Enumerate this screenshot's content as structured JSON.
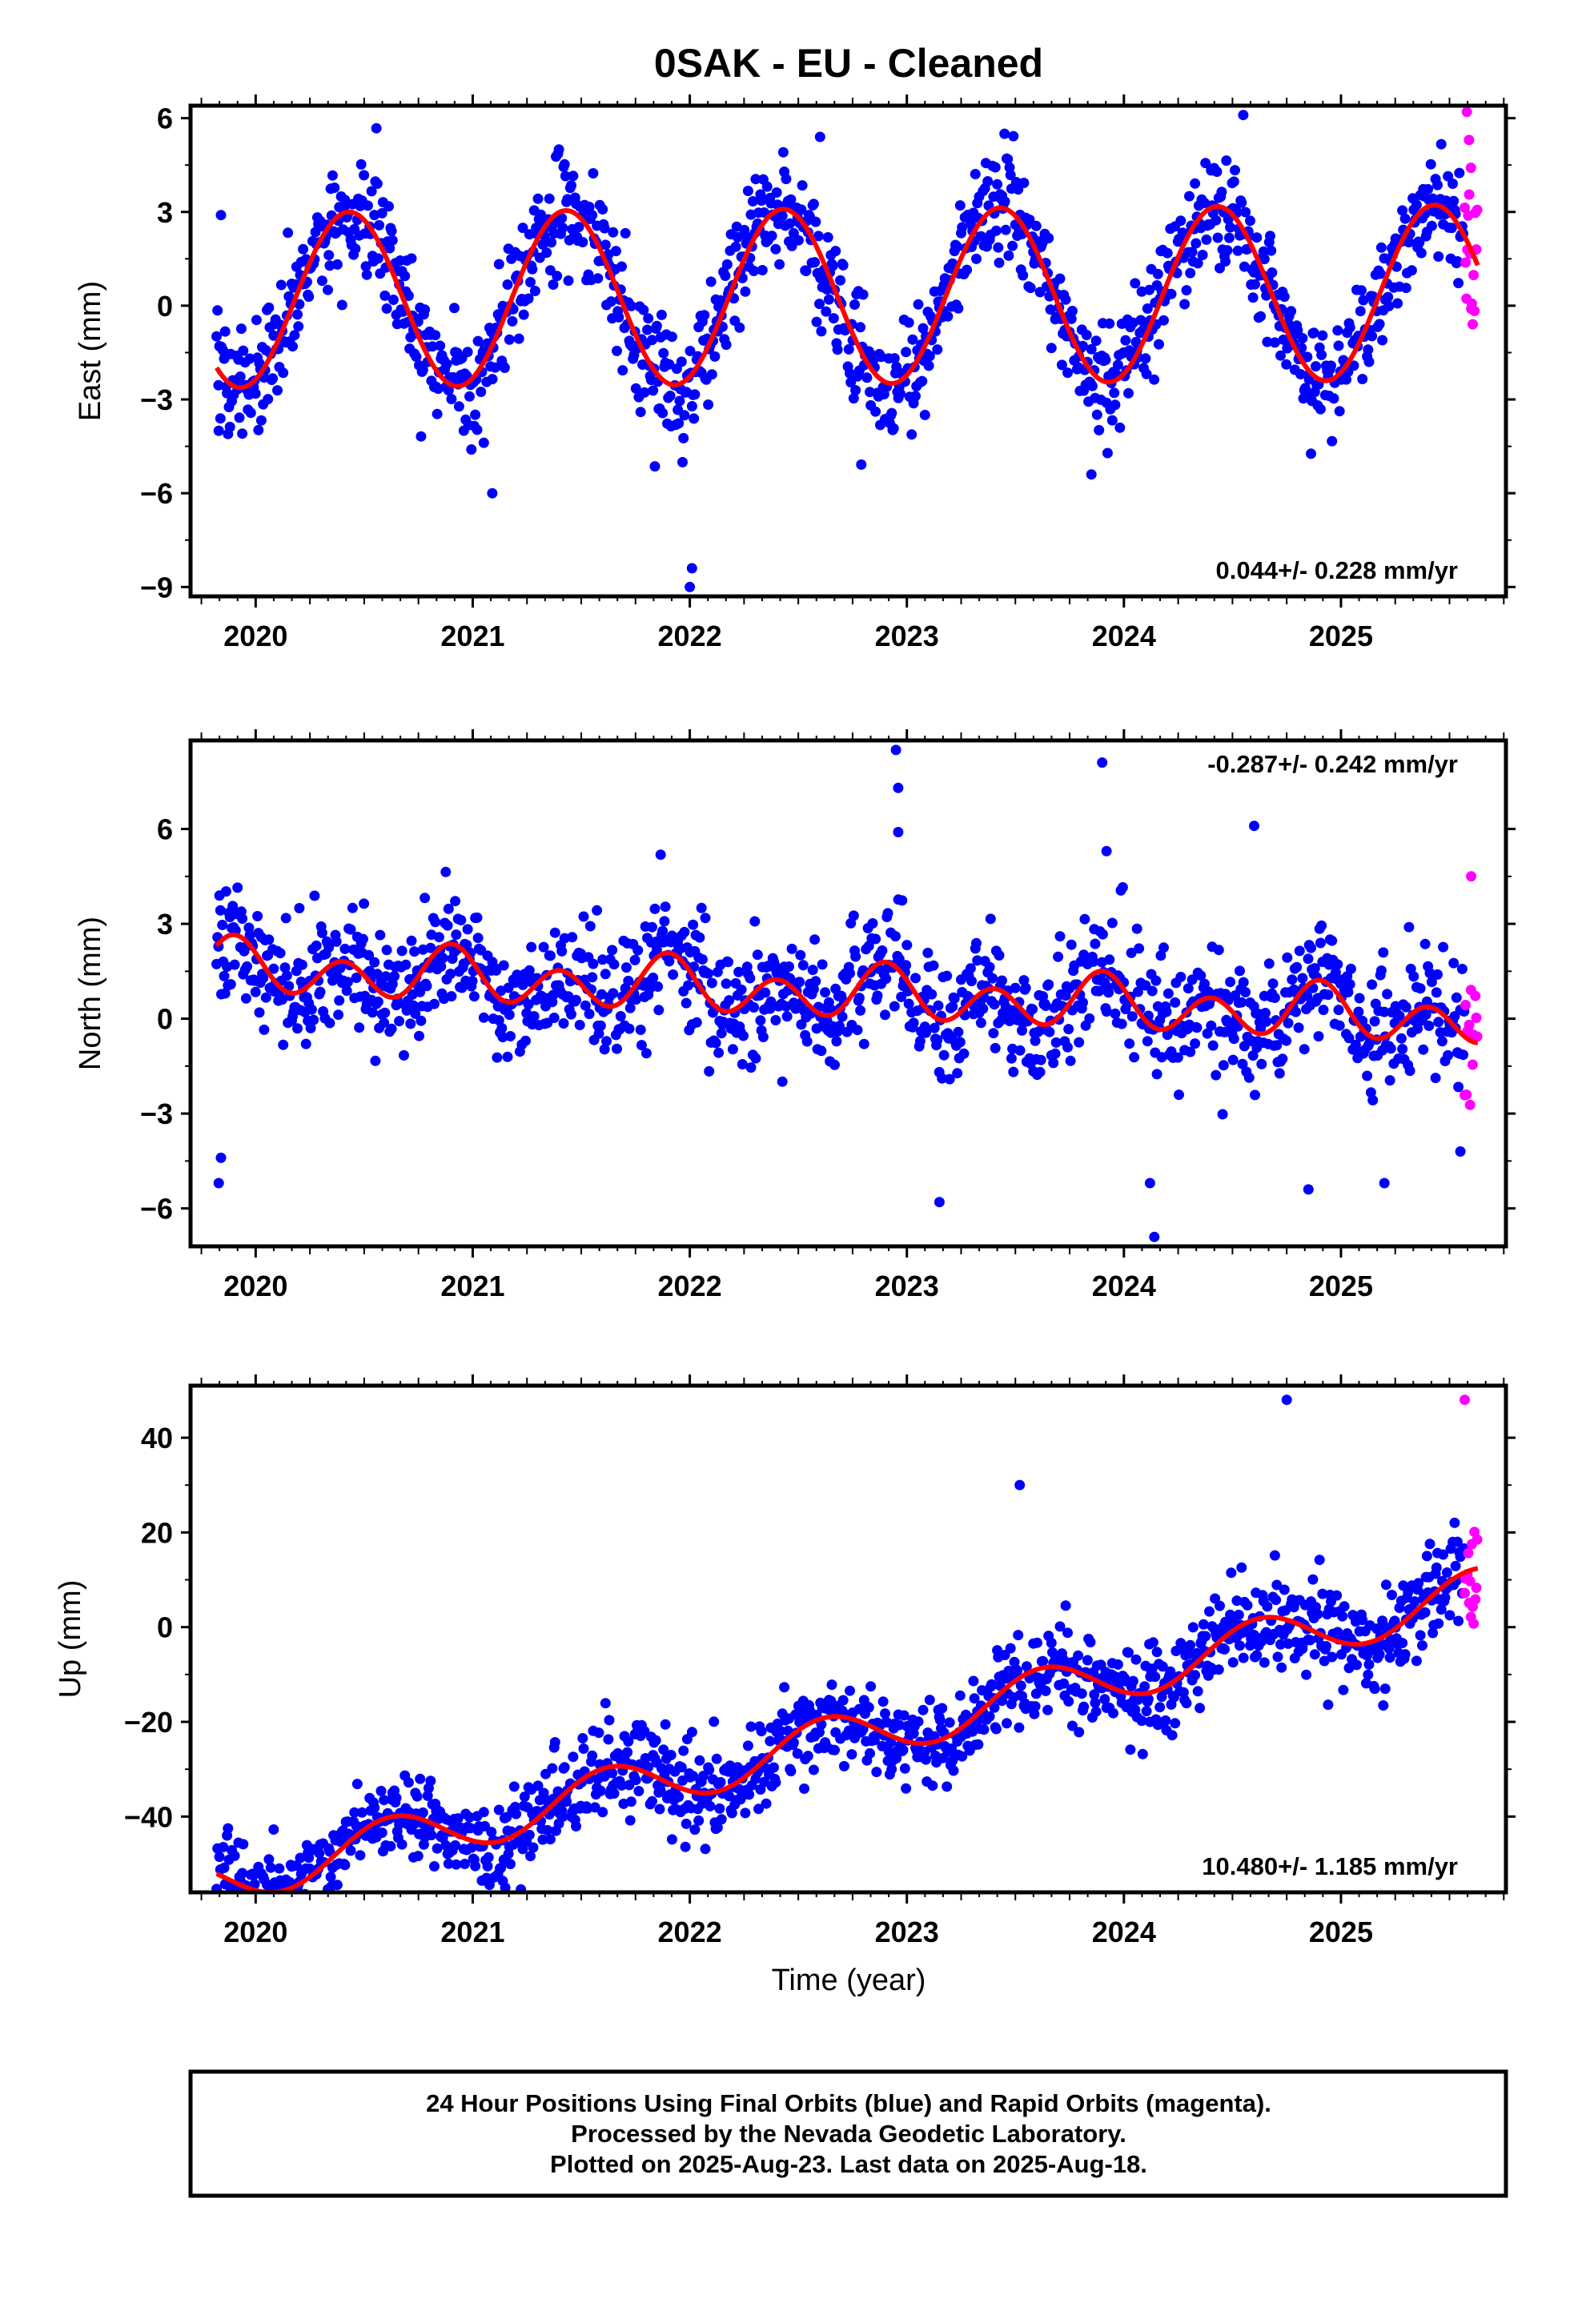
{
  "title": "0SAK  - EU - Cleaned",
  "xlabel": "Time (year)",
  "footer": {
    "line1": "24 Hour Positions Using Final Orbits (blue) and Rapid Orbits (magenta).",
    "line2": "Processed by the Nevada Geodetic Laboratory.",
    "line3": "Plotted on 2025-Aug-23. Last data on 2025-Aug-18."
  },
  "colors": {
    "final": "#0000ff",
    "rapid": "#ff00ff",
    "model": "#ff0000",
    "frame": "#000000"
  },
  "chart_data": [
    {
      "type": "scatter",
      "ylabel": "East (mm)",
      "rate_label": "0.044+/- 0.228 mm/yr",
      "rate_position": "bottom-right",
      "xlim": [
        2019.7,
        2025.76
      ],
      "ylim": [
        -9.3,
        6.4
      ],
      "yticks": [
        6,
        3,
        0,
        -3,
        -6,
        -9
      ],
      "ytick_labels": [
        "6",
        "3",
        "0",
        "−3",
        "−6",
        "−9"
      ],
      "xticks": [
        2020,
        2021,
        2022,
        2023,
        2024,
        2025
      ],
      "xtick_labels": [
        "2020",
        "2021",
        "2022",
        "2023",
        "2024",
        "2025"
      ],
      "data_start": 2019.82,
      "rapid_start": 2025.57,
      "data_end": 2025.63,
      "model": {
        "offset": 0.3,
        "trend_per_yr": 0.044,
        "annual_amp": 2.8,
        "annual_peak_phase": 0.43,
        "semiannual_amp": 0.0
      },
      "scatter_sd": 0.9,
      "outliers": [
        {
          "x": 2019.84,
          "y": 2.9
        },
        {
          "x": 2019.83,
          "y": -4.0
        },
        {
          "x": 2021.09,
          "y": -6.0
        },
        {
          "x": 2022.0,
          "y": -9.0
        },
        {
          "x": 2022.01,
          "y": -8.4
        },
        {
          "x": 2022.6,
          "y": 5.4
        },
        {
          "x": 2023.45,
          "y": 5.5
        },
        {
          "x": 2024.55,
          "y": 6.1
        },
        {
          "x": 2023.85,
          "y": -5.4
        },
        {
          "x": 2025.58,
          "y": 6.2
        },
        {
          "x": 2025.59,
          "y": 5.3
        },
        {
          "x": 2025.6,
          "y": -0.1
        }
      ]
    },
    {
      "type": "scatter",
      "ylabel": "North (mm)",
      "rate_label": "-0.287+/- 0.242 mm/yr",
      "rate_position": "top-right",
      "xlim": [
        2019.7,
        2025.76
      ],
      "ylim": [
        -7.2,
        8.8
      ],
      "yticks": [
        6,
        3,
        0,
        -3,
        -6
      ],
      "ytick_labels": [
        "6",
        "3",
        "0",
        "−3",
        "−6"
      ],
      "xticks": [
        2020,
        2021,
        2022,
        2023,
        2024,
        2025
      ],
      "xtick_labels": [
        "2020",
        "2021",
        "2022",
        "2023",
        "2024",
        "2025"
      ],
      "data_start": 2019.82,
      "rapid_start": 2025.57,
      "data_end": 2025.63,
      "model": {
        "offset": 0.8,
        "trend_per_yr": -0.287,
        "annual_amp": 0.35,
        "annual_peak_phase": 0.9,
        "semiannual_amp": 0.7
      },
      "scatter_sd": 0.95,
      "outliers": [
        {
          "x": 2019.83,
          "y": -5.2
        },
        {
          "x": 2019.84,
          "y": -4.4
        },
        {
          "x": 2022.95,
          "y": 8.5
        },
        {
          "x": 2022.96,
          "y": 7.3
        },
        {
          "x": 2022.96,
          "y": 5.9
        },
        {
          "x": 2023.9,
          "y": 8.1
        },
        {
          "x": 2024.6,
          "y": 6.1
        },
        {
          "x": 2024.12,
          "y": -5.2
        },
        {
          "x": 2024.14,
          "y": -6.9
        },
        {
          "x": 2023.15,
          "y": -5.8
        },
        {
          "x": 2024.85,
          "y": -5.4
        },
        {
          "x": 2025.2,
          "y": -5.2
        },
        {
          "x": 2025.55,
          "y": -4.2
        },
        {
          "x": 2025.6,
          "y": 4.5
        },
        {
          "x": 2023.92,
          "y": 5.3
        }
      ]
    },
    {
      "type": "scatter",
      "ylabel": "Up (mm)",
      "rate_label": "10.480+/- 1.185 mm/yr",
      "rate_position": "bottom-right",
      "xlim": [
        2019.7,
        2025.76
      ],
      "ylim": [
        -56,
        51
      ],
      "yticks": [
        40,
        20,
        0,
        -20,
        -40
      ],
      "ytick_labels": [
        "40",
        "20",
        "0",
        "−20",
        "−40"
      ],
      "xticks": [
        2020,
        2021,
        2022,
        2023,
        2024,
        2025
      ],
      "xtick_labels": [
        "2020",
        "2021",
        "2022",
        "2023",
        "2024",
        "2025"
      ],
      "data_start": 2019.82,
      "rapid_start": 2025.57,
      "data_end": 2025.63,
      "model": {
        "offset": -23.5,
        "trend_per_yr": 10.48,
        "annual_amp": 5.2,
        "annual_peak_phase": 0.62,
        "semiannual_amp": 0.0
      },
      "scatter_sd": 4.8,
      "outliers": [
        {
          "x": 2021.15,
          "y": -55
        },
        {
          "x": 2021.14,
          "y": -45
        },
        {
          "x": 2024.12,
          "y": -20
        },
        {
          "x": 2024.75,
          "y": 48
        },
        {
          "x": 2022.93,
          "y": -30
        },
        {
          "x": 2025.57,
          "y": 48
        },
        {
          "x": 2023.52,
          "y": 30
        }
      ]
    }
  ]
}
